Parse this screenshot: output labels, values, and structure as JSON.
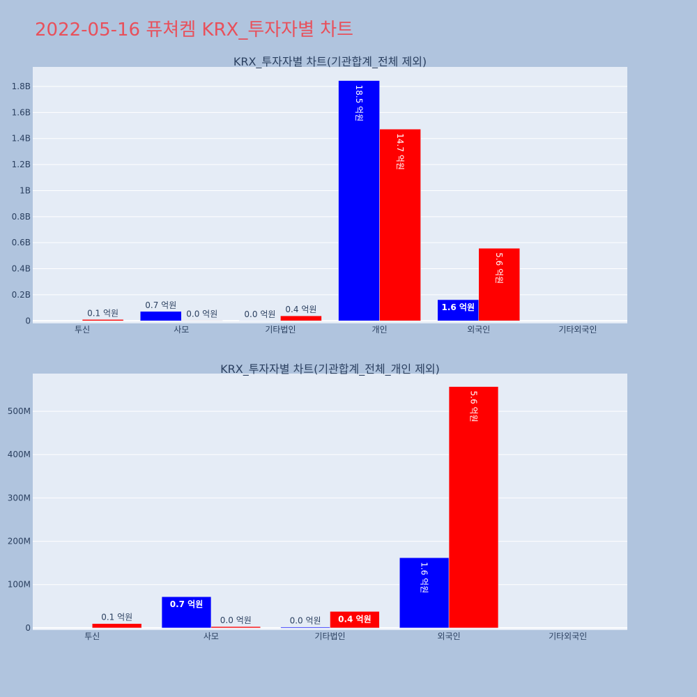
{
  "page": {
    "title": "2022-05-16 퓨쳐켐 KRX_투자자별 차트"
  },
  "colors": {
    "background": "#b0c4de",
    "plot_background": "#e5ecf6",
    "title": "#e8505b",
    "series_blue": "#0000ff",
    "series_red": "#ff0000",
    "text": "#2a3f5f"
  },
  "chart_data": [
    {
      "type": "bar",
      "title": "KRX_투자자별 차트(기관합계_전체 제외)",
      "categories": [
        "투신",
        "사모",
        "기타법인",
        "개인",
        "외국인",
        "기타외국인"
      ],
      "series": [
        {
          "color": "#0000ff",
          "values": [
            0,
            72000000,
            2000000,
            1845000000,
            162000000,
            0
          ],
          "labels": [
            "",
            "0.7 억원",
            "0.0 억원",
            "18.5 억원",
            "1.6 억원",
            ""
          ]
        },
        {
          "color": "#ff0000",
          "values": [
            10000000,
            3000000,
            38000000,
            1472000000,
            557000000,
            0
          ],
          "labels": [
            "0.1 억원",
            "0.0 억원",
            "0.4 억원",
            "14.7 억원",
            "5.6 억원",
            ""
          ]
        }
      ],
      "yticks": [
        0,
        200000000,
        400000000,
        600000000,
        800000000,
        1000000000,
        1200000000,
        1400000000,
        1600000000,
        1800000000
      ],
      "ytick_labels": [
        "0",
        "0.2B",
        "0.4B",
        "0.6B",
        "0.8B",
        "1B",
        "1.2B",
        "1.4B",
        "1.6B",
        "1.8B"
      ],
      "ylim": [
        -20000000,
        1950000000
      ],
      "grid": true
    },
    {
      "type": "bar",
      "title": "KRX_투자자별 차트(기관합계_전체_개인 제외)",
      "categories": [
        "투신",
        "사모",
        "기타법인",
        "외국인",
        "기타외국인"
      ],
      "series": [
        {
          "color": "#0000ff",
          "values": [
            0,
            72000000,
            2000000,
            162000000,
            0
          ],
          "labels": [
            "",
            "0.7 억원",
            "0.0 억원",
            "1.6 억원",
            ""
          ]
        },
        {
          "color": "#ff0000",
          "values": [
            10000000,
            3000000,
            38000000,
            557000000,
            0
          ],
          "labels": [
            "0.1 억원",
            "0.0 억원",
            "0.4 억원",
            "5.6 억원",
            ""
          ]
        }
      ],
      "yticks": [
        0,
        100000000,
        200000000,
        300000000,
        400000000,
        500000000
      ],
      "ytick_labels": [
        "0",
        "100M",
        "200M",
        "300M",
        "400M",
        "500M"
      ],
      "ylim": [
        -5000000,
        587000000
      ],
      "grid": true
    }
  ]
}
